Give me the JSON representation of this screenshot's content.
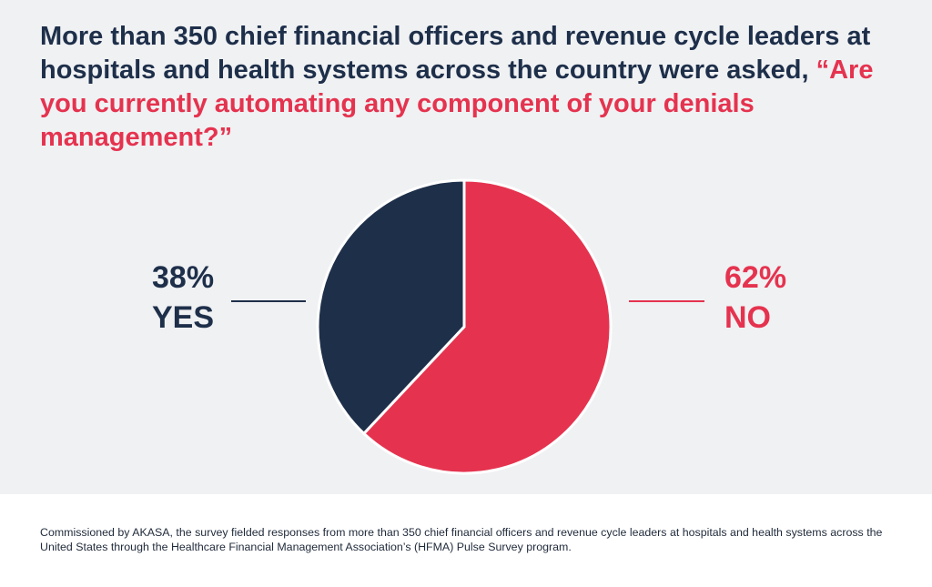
{
  "title": {
    "lead": "More than 350 chief financial officers and revenue cycle leaders at hospitals and health systems across the country were asked, ",
    "question": "“Are you currently automating any component of your denials management?”"
  },
  "colors": {
    "navy": "#1e2f4a",
    "red": "#e5334f",
    "panel_background": "#f0f1f3"
  },
  "chart_data": {
    "type": "pie",
    "title": "Are you currently automating any component of your denials management?",
    "slices": [
      {
        "label": "NO",
        "value": 62,
        "value_label": "62%",
        "color": "#e5334f"
      },
      {
        "label": "YES",
        "value": 38,
        "value_label": "38%",
        "color": "#1e2f4a"
      }
    ]
  },
  "footnote": "Commissioned by AKASA, the survey fielded responses from more than 350 chief financial officers and revenue cycle leaders at hospitals and health systems across the United States through the Healthcare Financial Management Association’s (HFMA) Pulse Survey program."
}
